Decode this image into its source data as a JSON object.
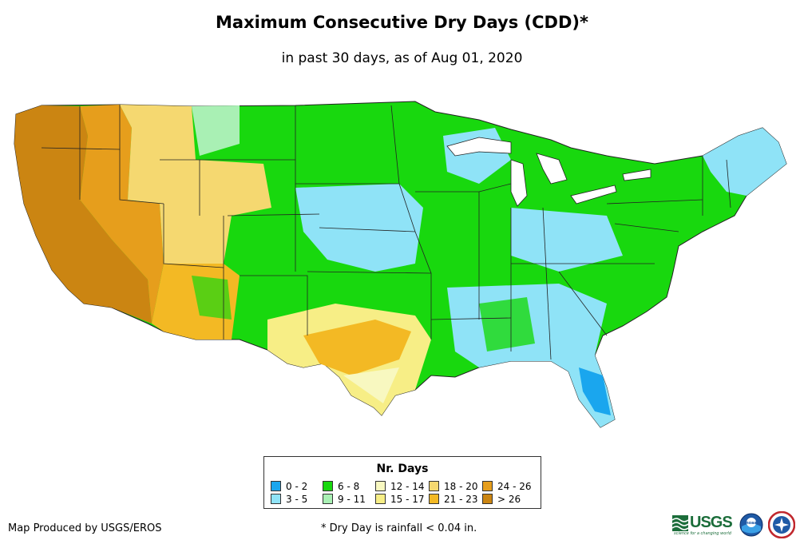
{
  "title": "Maximum Consecutive Dry Days (CDD)*",
  "subtitle": "in past 30 days, as of Aug 01, 2020",
  "legend": {
    "title": "Nr. Days",
    "items": [
      {
        "label": "0 - 2",
        "color": "#1aa6ee"
      },
      {
        "label": "3 - 5",
        "color": "#8fe3f7"
      },
      {
        "label": "6 - 8",
        "color": "#18d80e"
      },
      {
        "label": "9 - 11",
        "color": "#a9f0b4"
      },
      {
        "label": "12 - 14",
        "color": "#f8f8c0"
      },
      {
        "label": "15 - 17",
        "color": "#f7ee86"
      },
      {
        "label": "18 - 20",
        "color": "#f5d870"
      },
      {
        "label": "21 - 23",
        "color": "#f3b924"
      },
      {
        "label": "24 - 26",
        "color": "#e69e1c"
      },
      {
        "label": "> 26",
        "color": "#cb8512"
      }
    ]
  },
  "credit": "Map Produced by USGS/EROS",
  "footnote": "* Dry Day is rainfall < 0.04 in.",
  "logos": {
    "usgs": "USGS",
    "usgs_tagline": "science for a changing world",
    "noaa": "noaa"
  },
  "map": {
    "region": "Contiguous United States",
    "colors": {
      "water": "#ffffff",
      "state_border": "#222222"
    }
  }
}
